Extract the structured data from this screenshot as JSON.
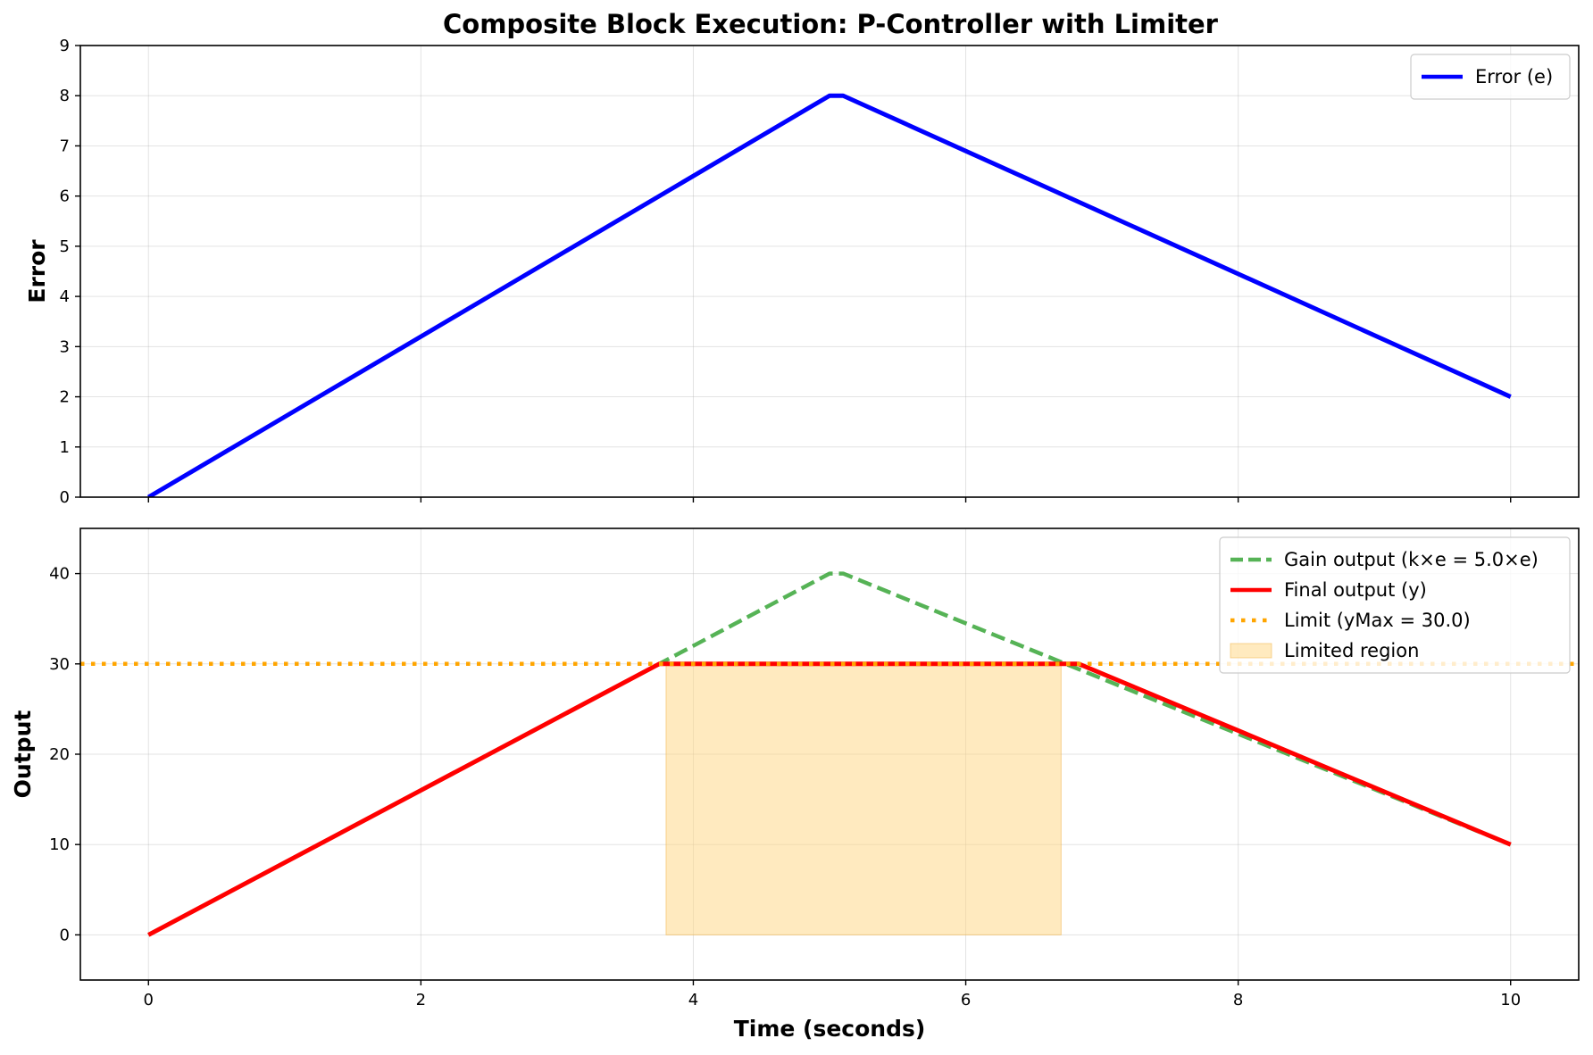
{
  "chart_data": [
    {
      "type": "line",
      "title": "Composite Block Execution: P-Controller with Limiter",
      "xlabel": "",
      "ylabel": "Error",
      "xlim": [
        -0.5,
        10.5
      ],
      "ylim": [
        0,
        9
      ],
      "xticks": [
        0,
        2,
        4,
        6,
        8,
        10
      ],
      "xtick_labels_visible": false,
      "yticks": [
        0,
        1,
        2,
        3,
        4,
        5,
        6,
        7,
        8,
        9
      ],
      "grid": true,
      "legend_placement": "top-right",
      "series": [
        {
          "name": "Error (e)",
          "color": "#0000ff",
          "style": "solid",
          "x": [
            0,
            5,
            5.1,
            10
          ],
          "y": [
            0,
            8,
            8,
            2
          ]
        }
      ]
    },
    {
      "type": "line",
      "title": "",
      "xlabel": "Time (seconds)",
      "ylabel": "Output",
      "xlim": [
        -0.5,
        10.5
      ],
      "ylim": [
        -5,
        45
      ],
      "xticks": [
        0,
        2,
        4,
        6,
        8,
        10
      ],
      "yticks": [
        0,
        10,
        20,
        30,
        40
      ],
      "grid": true,
      "legend_placement": "top-right",
      "series": [
        {
          "name": "Gain output (k×e = 5.0×e)",
          "color": "#2ca02c",
          "style": "dashed",
          "x": [
            0,
            5,
            5.1,
            10
          ],
          "y": [
            0,
            40,
            40,
            10
          ]
        },
        {
          "name": "Final output (y)",
          "color": "#ff0000",
          "style": "solid",
          "x": [
            0,
            3.75,
            6.83,
            10
          ],
          "y": [
            0,
            30,
            30,
            10
          ]
        },
        {
          "name": "Limit (yMax = 30.0)",
          "color": "#ffa500",
          "style": "dotted",
          "y_constant": 30
        },
        {
          "name": "Limited region",
          "color": "#ffd580",
          "style": "fill",
          "x_range": [
            3.8,
            6.7
          ],
          "y_range": [
            0,
            30
          ]
        }
      ]
    }
  ]
}
